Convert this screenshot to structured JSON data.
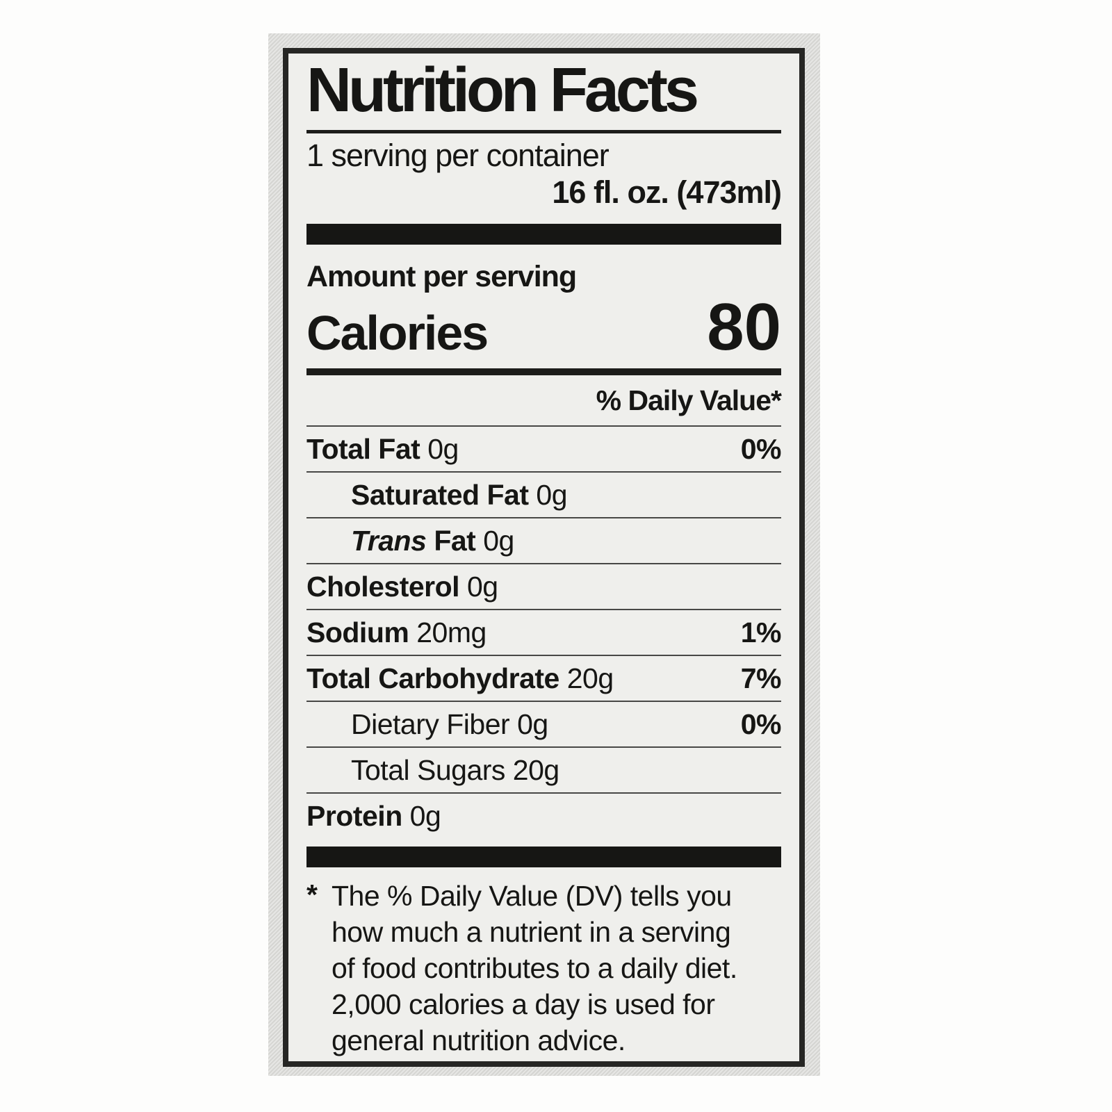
{
  "label": {
    "title": "Nutrition Facts",
    "servings_per_container": "1 serving per container",
    "serving_size": "16 fl. oz. (473ml)",
    "amount_per_serving": "Amount per serving",
    "calories_label": "Calories",
    "calories_value": "80",
    "daily_value_header": "% Daily Value*",
    "rows": [
      {
        "name": "Total Fat",
        "value": "0g",
        "dv": "0%",
        "indent": false,
        "bold": true
      },
      {
        "name": "Saturated Fat",
        "value": "0g",
        "dv": "",
        "indent": true,
        "bold": true
      },
      {
        "name": "Fat",
        "italic_prefix": "Trans",
        "value": "0g",
        "dv": "",
        "indent": true,
        "bold": true
      },
      {
        "name": "Cholesterol",
        "value": "0g",
        "dv": "",
        "indent": false,
        "bold": true
      },
      {
        "name": "Sodium",
        "value": "20mg",
        "dv": "1%",
        "indent": false,
        "bold": true
      },
      {
        "name": "Total Carbohydrate",
        "value": "20g",
        "dv": "7%",
        "indent": false,
        "bold": true
      },
      {
        "name": "Dietary Fiber",
        "value": "0g",
        "dv": "0%",
        "indent": true,
        "bold": false
      },
      {
        "name": "Total Sugars",
        "value": "20g",
        "dv": "",
        "indent": true,
        "bold": false
      },
      {
        "name": "Protein",
        "value": "0g",
        "dv": "",
        "indent": false,
        "bold": true
      }
    ],
    "footnote_marker": "*",
    "footnote_lines": [
      "The % Daily Value (DV) tells you",
      "how much a nutrient in a serving",
      "of food contributes to a daily diet.",
      "2,000 calories a day is used for",
      "general nutrition advice."
    ]
  },
  "colors": {
    "label_background": "#efefec",
    "photo_background": "#d9d9d6",
    "ink": "#161614"
  }
}
